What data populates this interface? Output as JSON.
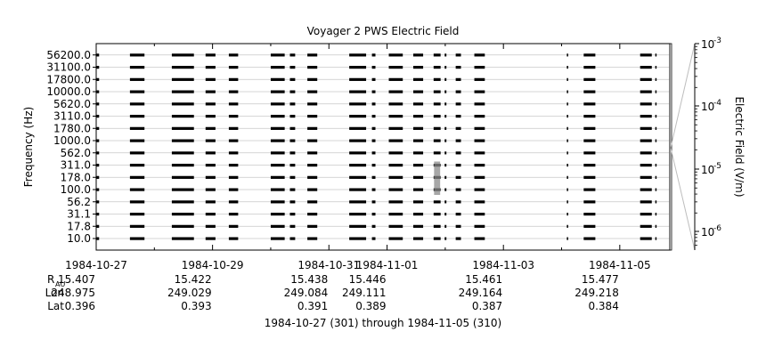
{
  "chart_data": {
    "type": "heatmap",
    "title": "Voyager 2 PWS Electric Field",
    "ylabel": "Frequency (Hz)",
    "y_ticks": [
      "10.0",
      "17.8",
      "31.1",
      "56.2",
      "100.0",
      "178.0",
      "311.0",
      "562.0",
      "1000.0",
      "1780.0",
      "3110.0",
      "5620.0",
      "10000.0",
      "17800.0",
      "31100.0",
      "56200.0"
    ],
    "x_ticks": [
      "1984-10-27",
      "1984-10-29",
      "1984-10-31",
      "1984-11-01",
      "1984-11-03",
      "1984-11-05"
    ],
    "x_tick_days": [
      0,
      2,
      4,
      5,
      7,
      9
    ],
    "x_range_days": [
      0,
      9.86
    ],
    "colorbar": {
      "label": "Electric Field (V/m)",
      "tick_labels": [
        "10",
        "10",
        "10",
        "10"
      ],
      "tick_exponents": [
        "-3",
        "-4",
        "-5",
        "-6"
      ],
      "tick_values": [
        0.001,
        0.0001,
        1e-05,
        1e-06
      ],
      "scale": "log"
    },
    "ephemeris": {
      "row_labels": [
        "R",
        "Lon",
        "Lat"
      ],
      "r_subscript": "AU",
      "columns": [
        {
          "r": "15.407",
          "lon": "248.975",
          "lat": "0.396"
        },
        {
          "r": "15.422",
          "lon": "249.029",
          "lat": "0.393"
        },
        {
          "r": "15.438",
          "lon": "249.084",
          "lat": "0.391"
        },
        {
          "r": "15.446",
          "lon": "249.111",
          "lat": "0.389"
        },
        {
          "r": "15.461",
          "lon": "249.164",
          "lat": "0.387"
        },
        {
          "r": "15.477",
          "lon": "249.218",
          "lat": "0.384"
        }
      ]
    },
    "footer": "1984-10-27 (301) through 1984-11-05 (310)",
    "data_intervals_days": [
      [
        0.0,
        0.05
      ],
      [
        0.58,
        0.83
      ],
      [
        1.3,
        1.68
      ],
      [
        1.88,
        2.05
      ],
      [
        2.28,
        2.44
      ],
      [
        3.0,
        3.24
      ],
      [
        3.33,
        3.42
      ],
      [
        3.63,
        3.8
      ],
      [
        4.35,
        4.64
      ],
      [
        4.74,
        4.8
      ],
      [
        5.03,
        5.27
      ],
      [
        5.45,
        5.62
      ],
      [
        5.8,
        5.92
      ],
      [
        5.99,
        6.02
      ],
      [
        6.18,
        6.27
      ],
      [
        6.5,
        6.68
      ],
      [
        8.09,
        8.11
      ],
      [
        8.38,
        8.58
      ],
      [
        9.35,
        9.55
      ],
      [
        9.61,
        9.63
      ]
    ],
    "enhanced_emission": [
      {
        "day_start": 5.8,
        "day_end": 5.92,
        "freq_min": 100.0,
        "freq_max": 311.0
      }
    ],
    "grid": true
  }
}
